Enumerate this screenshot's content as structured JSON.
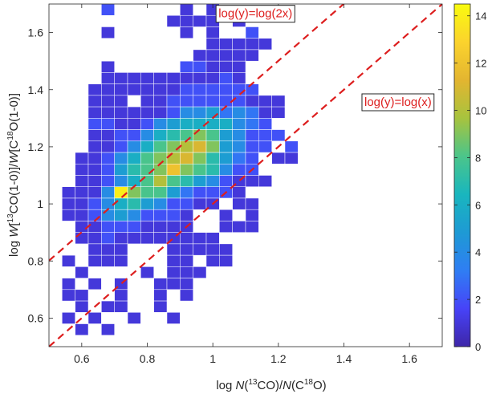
{
  "chart_data": {
    "type": "heatmap",
    "xlabel": {
      "prefix": "log ",
      "n1": "N",
      "p1": "(",
      "s1": "13",
      "p2": "CO)/",
      "n2": "N",
      "p3": "(C",
      "s2": "18",
      "p4": "O)"
    },
    "ylabel": {
      "prefix": "log ",
      "w1": "W",
      "p1": "[",
      "s1": "13",
      "p2": "CO(1-0)]/",
      "w2": "W",
      "p3": "[C",
      "s2": "18",
      "p4": "O(1-0)]"
    },
    "xlim": [
      0.5,
      1.7
    ],
    "ylim": [
      0.5,
      1.7
    ],
    "xticks": [
      0.6,
      0.8,
      1,
      1.2,
      1.4,
      1.6
    ],
    "xtick_labels": [
      "0.6",
      "0.8",
      "1",
      "1.2",
      "1.4",
      "1.6"
    ],
    "yticks": [
      0.6,
      0.8,
      1,
      1.2,
      1.4,
      1.6
    ],
    "ytick_labels": [
      "0.6",
      "0.8",
      "1",
      "1.2",
      "1.4",
      "1.6"
    ],
    "bin_width": 0.04,
    "x_bin_edges_start": 0.5,
    "y_bin_edges_start": 0.5,
    "colorbar": {
      "range": [
        0,
        14.5
      ],
      "ticks": [
        0,
        2,
        4,
        6,
        8,
        10,
        12,
        14
      ],
      "tick_labels": [
        "0",
        "2",
        "4",
        "6",
        "8",
        "10",
        "12",
        "14"
      ],
      "colormap": [
        "#3e26a8",
        "#4743f8",
        "#2f7ef3",
        "#1e9ad4",
        "#19b6be",
        "#4bc58a",
        "#a7c33e",
        "#e3b530",
        "#fbd32d",
        "#f9fb0e"
      ]
    },
    "counts_rows_top_to_bottom": [
      "...........................",
      "....2.....1.1..............",
      ".........1111.1............",
      "....1.....1.1..2...........",
      "............11111..........",
      "...........11111...........",
      "....1.....22111............",
      "....11111111121............",
      "...1111111222222...........",
      "...111.11222222111.........",
      "...111111244534311.........",
      "...22112456666432..........",
      "...112246789854222.........",
      "...1124689AB95422.2........",
      "..1124689AB97532.11........",
      "..1125789C987422...........",
      "..112468A87542111..........",
      ".1114E988532221............",
      ".112467542211.11...........",
      ".1124542221..1.1...........",
      "..112221111..111...........",
      "..11211111111..............",
      "...111...11111.............",
      ".1.111...11.11.............",
      "..1....1.111...............",
      ".1.1.1..111................",
      ".11..1..1.1................",
      "..1.11..1..................",
      ".1.1..1..1.................",
      "..1.1.....................",
      "..........................."
    ],
    "count_key": {
      "1": 1,
      "2": 2,
      "3": 3,
      "4": 4,
      "5": 5,
      "6": 6,
      "7": 7,
      "8": 8,
      "9": 9,
      "A": 10,
      "B": 11,
      "C": 12,
      "D": 13,
      "E": 14
    },
    "lines": [
      {
        "name": "log(y)=log(2x)",
        "slope": 1,
        "intercept": 0.30103,
        "color": "#dd1e1e",
        "dash": true
      },
      {
        "name": "log(y)=log(x)",
        "slope": 1,
        "intercept": 0,
        "color": "#dd1e1e",
        "dash": true
      }
    ],
    "annotations": [
      {
        "text": "log(y)=log(2x)",
        "x": 1.13,
        "y": 1.67,
        "color": "#dd1e1e"
      },
      {
        "text": "log(y)=log(x)",
        "x": 1.565,
        "y": 1.36,
        "color": "#dd1e1e"
      }
    ]
  }
}
